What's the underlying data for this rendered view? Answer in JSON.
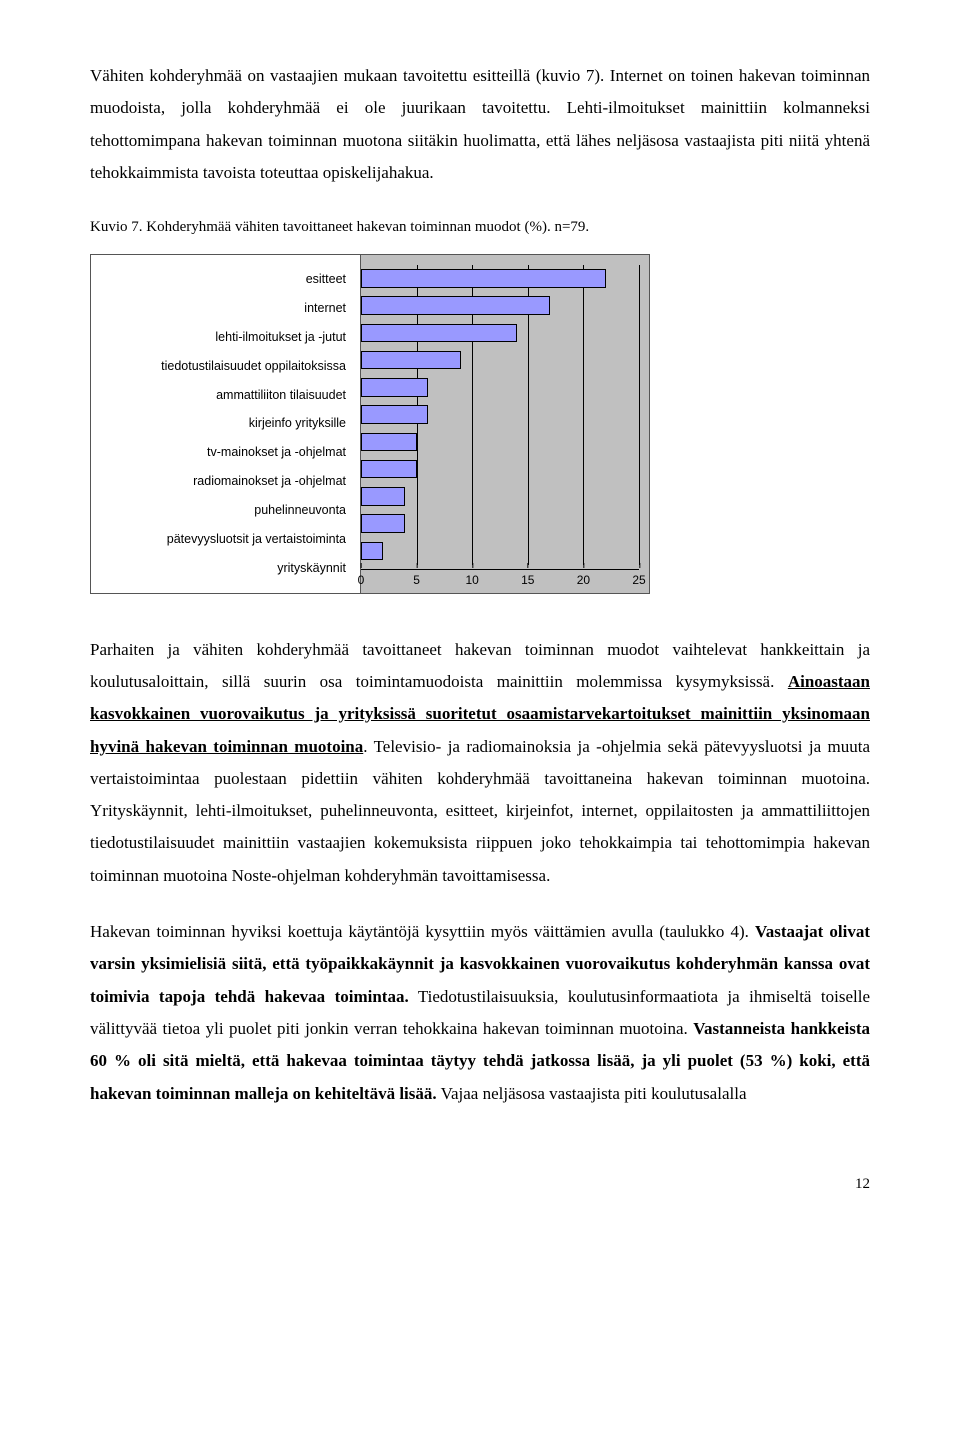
{
  "para1": "Vähiten kohderyhmää on vastaajien mukaan tavoitettu esitteillä (kuvio 7). Internet on toinen hakevan toiminnan muodoista, jolla kohderyhmää ei ole juurikaan tavoitettu. Lehti-ilmoitukset mainittiin kolmanneksi tehottomimpana hakevan toiminnan muotona siitäkin huolimatta, että lähes neljäsosa vastaajista piti niitä yhtenä tehokkaimmista tavoista toteuttaa opiskelijahakua.",
  "caption": "Kuvio 7. Kohderyhmää vähiten tavoittaneet hakevan toiminnan muodot (%). n=79.",
  "chart": {
    "type": "bar",
    "orientation": "horizontal",
    "categories": [
      "esitteet",
      "internet",
      "lehti-ilmoitukset ja -jutut",
      "tiedotustilaisuudet oppilaitoksissa",
      "ammattiliiton tilaisuudet",
      "kirjeinfo yrityksille",
      "tv-mainokset ja -ohjelmat",
      "radiomainokset ja -ohjelmat",
      "puhelinneuvonta",
      "pätevyysluotsit ja vertaistoiminta",
      "yrityskäynnit"
    ],
    "values": [
      22,
      17,
      14,
      9,
      6,
      6,
      5,
      5,
      4,
      4,
      2
    ],
    "bar_color": "#9999ff",
    "bar_border": "#000000",
    "background_color": "#c0c0c0",
    "label_panel_bg": "#ffffff",
    "xlim": [
      0,
      25
    ],
    "xtick_step": 5,
    "xticks": [
      0,
      5,
      10,
      15,
      20,
      25
    ],
    "label_fontfamily": "Arial",
    "label_fontsize": 12.5,
    "tick_fontsize": 12
  },
  "para2": {
    "seg1": "Parhaiten ja vähiten kohderyhmää tavoittaneet hakevan toiminnan muodot vaihtelevat hankkeittain ja koulutusaloittain, sillä suurin osa toimintamuodoista mainittiin molemmissa kysymyksissä. ",
    "seg2_bu": "Ainoastaan kasvokkainen vuorovaikutus ja yrityksissä suoritetut osaamistarvekartoitukset mainittiin yksinomaan hyvinä hakevan toiminnan muotoina",
    "seg3": ". Televisio- ja radiomainoksia ja -ohjelmia sekä pätevyysluotsi ja muuta vertaistoimintaa puolestaan pidettiin vähiten kohderyhmää tavoittaneina hakevan toiminnan muotoina. Yrityskäynnit, lehti-ilmoitukset, puhelinneuvonta, esitteet, kirjeinfot, internet, oppilaitosten ja ammattiliittojen tiedotustilaisuudet mainittiin vastaajien kokemuksista riippuen joko tehokkaimpia tai tehottomimpia hakevan toiminnan muotoina Noste-ohjelman kohderyhmän tavoittamisessa."
  },
  "para3": {
    "seg1": "Hakevan toiminnan hyviksi koettuja käytäntöjä kysyttiin myös väittämien avulla (taulukko 4). ",
    "seg2_b": "Vastaajat olivat varsin yksimielisiä siitä, että työpaikkakäynnit ja kasvokkainen vuorovaikutus kohderyhmän kanssa ovat toimivia tapoja tehdä hakevaa toimintaa.",
    "seg3": " Tiedotustilaisuuksia, koulutusinformaatiota ja ihmiseltä toiselle välittyvää tietoa yli puolet piti jonkin verran tehokkaina hakevan toiminnan muotoina. ",
    "seg4_b": "Vastanneista hankkeista 60 % oli sitä mieltä, että hakevaa toimintaa täytyy tehdä jatkossa lisää, ja yli puolet (53 %) koki, että hakevan toiminnan malleja on kehiteltävä lisää.",
    "seg5": " Vajaa neljäsosa vastaajista piti koulutusalalla"
  },
  "page_number": "12"
}
